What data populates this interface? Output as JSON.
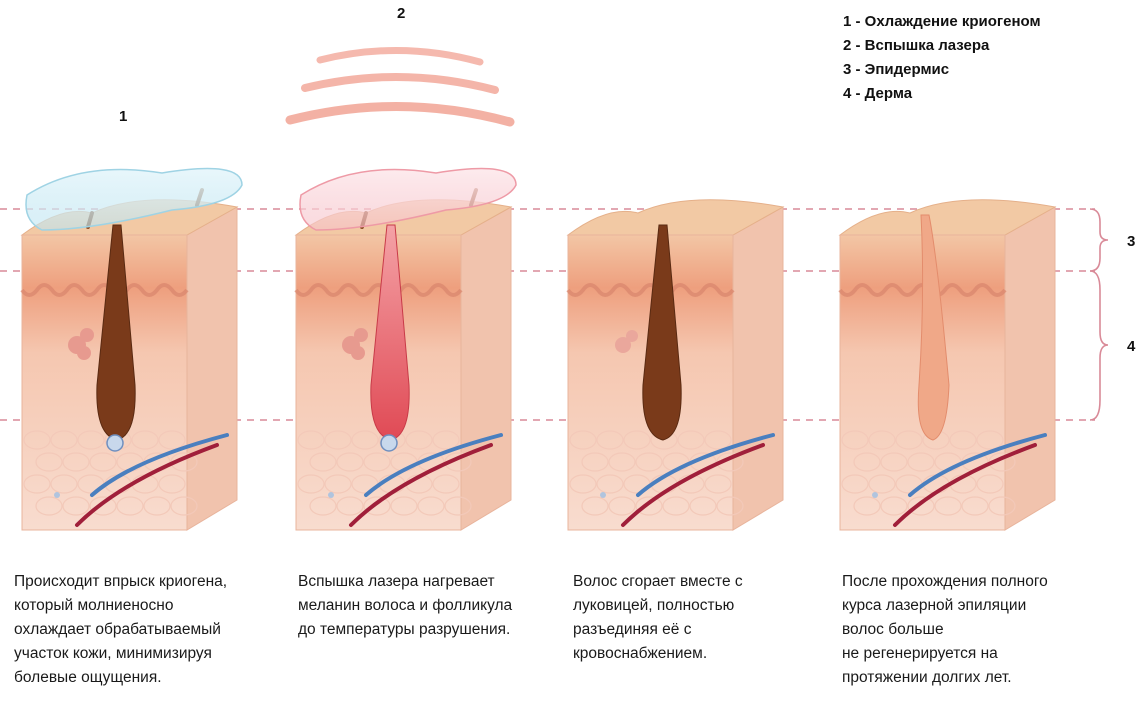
{
  "step_numbers": {
    "n1": "1",
    "n2": "2",
    "n3": "3",
    "n4": "4"
  },
  "legend": [
    "1 - Охлаждение криогеном",
    "2 - Вспышка лазера",
    "3 - Эпидермис",
    "4 - Дерма"
  ],
  "captions": [
    [
      "Происходит впрыск криогена,",
      "который молниеносно",
      "охлаждает обрабатываемый",
      "участок кожи, минимизируя",
      "болевые ощущения."
    ],
    [
      "Вспышка лазера нагревает",
      "меланин волоса и фолликула",
      "до температуры разрушения."
    ],
    [
      "Волос сгорает вместе с",
      "луковицей, полностью",
      "разъединяя её с",
      "кровоснабжением."
    ],
    [
      "После прохождения полного",
      "курса лазерной эпиляции",
      "волос больше",
      "не регенерируется на",
      "протяжении долгих лет."
    ]
  ],
  "colors": {
    "skin_top": "#f2c9a4",
    "skin_side": "#f6d8c8",
    "dermis_wave": "#d8846c",
    "hair": "#7a3a1a",
    "hair_heated": "#e8606a",
    "vein": "#4a7fbf",
    "artery": "#a01f3a",
    "guide_line": "#d77a8c"
  }
}
